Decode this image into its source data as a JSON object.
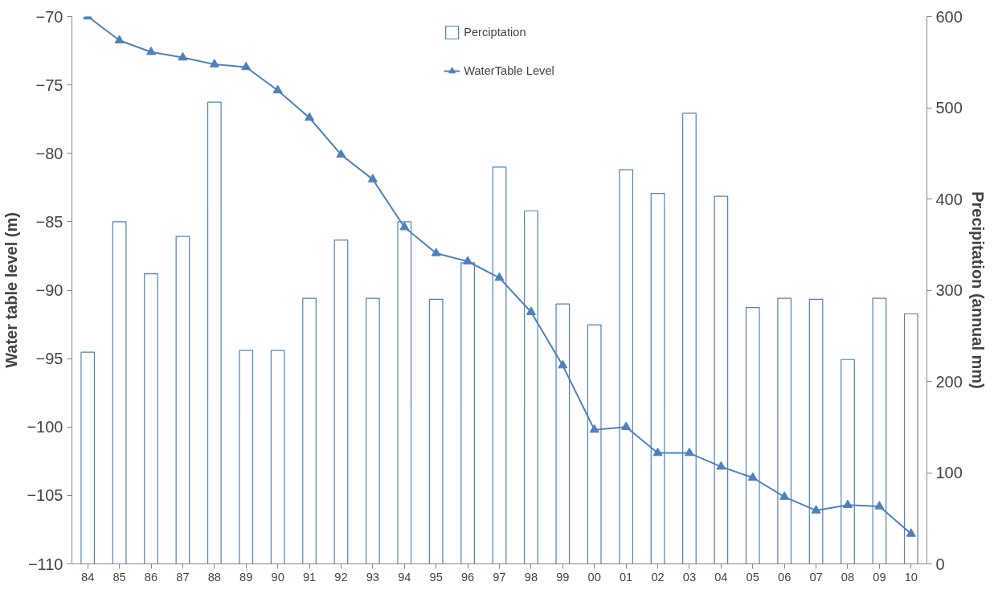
{
  "chart_data": {
    "type": "bar",
    "ylabel": "Water table level (m)",
    "y2label": "Precipitation (annual mm)",
    "categories": [
      "84",
      "85",
      "86",
      "87",
      "88",
      "89",
      "90",
      "91",
      "92",
      "93",
      "94",
      "95",
      "96",
      "97",
      "98",
      "99",
      "00",
      "01",
      "02",
      "03",
      "04",
      "05",
      "06",
      "07",
      "08",
      "09",
      "10"
    ],
    "series": [
      {
        "name": "Perciptation",
        "axis": "y2",
        "color": "#4f81bd",
        "values": [
          232,
          375,
          318,
          359,
          506,
          234,
          234,
          291,
          355,
          291,
          375,
          290,
          330,
          435,
          387,
          285,
          262,
          432,
          406,
          494,
          403,
          281,
          291,
          290,
          224,
          291,
          274
        ]
      },
      {
        "name": "WaterTable Level",
        "type": "line",
        "axis": "y",
        "color": "#4f81bd",
        "marker": "triangle",
        "values": [
          -70,
          -71.75,
          -72.6,
          -73.0,
          -73.5,
          -73.7,
          -75.4,
          -77.4,
          -80.1,
          -81.9,
          -85.4,
          -87.3,
          -87.9,
          -89.1,
          -91.6,
          -95.5,
          -100.2,
          -100.0,
          -101.9,
          -101.9,
          -102.9,
          -103.7,
          -105.1,
          -106.1,
          -105.7,
          -105.8,
          -107.8
        ]
      }
    ],
    "ylim": [
      -110,
      -70
    ],
    "yticks": [
      -110,
      -105,
      -100,
      -95,
      -90,
      -85,
      -80,
      -75,
      -70
    ],
    "y2lim": [
      0,
      600
    ],
    "y2ticks": [
      0,
      100,
      200,
      300,
      400,
      500,
      600
    ],
    "grid": false,
    "legend": "top"
  }
}
